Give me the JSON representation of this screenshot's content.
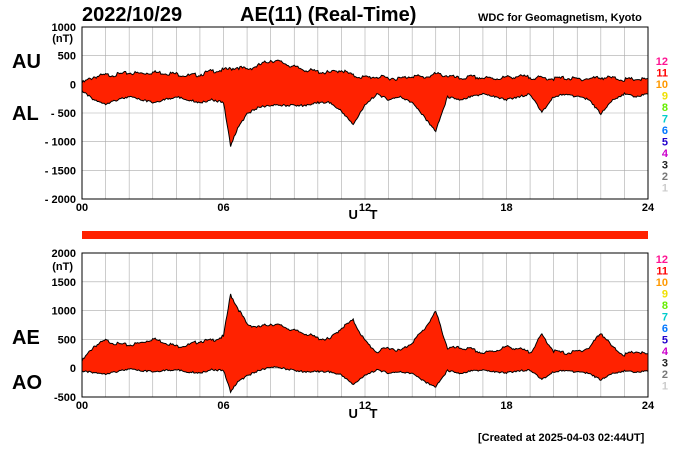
{
  "header": {
    "date": "2022/10/29",
    "title": "AE(11) (Real-Time)",
    "credit": "WDC for Geomagnetism, Kyoto",
    "created": "[Created at 2025-04-03 02:44UT]"
  },
  "station_numbers": [
    "12",
    "11",
    "10",
    "9",
    "8",
    "7",
    "6",
    "5",
    "4",
    "3",
    "2",
    "1"
  ],
  "station_colors": [
    "#ff1493",
    "#ff0000",
    "#ff9900",
    "#f0e000",
    "#66ee00",
    "#00cccc",
    "#0077ff",
    "#2200cc",
    "#cc00cc",
    "#222222",
    "#777777",
    "#cccccc"
  ],
  "colors": {
    "fill": "#ff2200",
    "line": "#000000",
    "grid": "#aaaaaa"
  },
  "chart_data": [
    {
      "type": "area",
      "panel": "top",
      "series": [
        {
          "name": "AU"
        },
        {
          "name": "AL"
        }
      ],
      "side_labels": [
        "AU",
        "AL"
      ],
      "unit": "(nT)",
      "xlabel": "U T",
      "xlim": [
        0,
        24
      ],
      "ylim": [
        -2000,
        1000
      ],
      "xticks": [
        0,
        6,
        12,
        18,
        24
      ],
      "xtick_labels": [
        "00",
        "06",
        "12",
        "18",
        "24"
      ],
      "yticks": [
        1000,
        500,
        0,
        -500,
        -1000,
        -1500,
        -2000
      ],
      "ytick_labels": [
        "1000",
        "500",
        "0",
        "- 500",
        "- 1000",
        "- 1500",
        "- 2000"
      ],
      "grid": true,
      "x": [
        0,
        0.5,
        1,
        1.5,
        2,
        2.5,
        3,
        3.5,
        4,
        4.5,
        5,
        5.5,
        6,
        6.3,
        6.6,
        7,
        7.5,
        8,
        8.5,
        9,
        9.5,
        10,
        10.5,
        11,
        11.5,
        12,
        12.5,
        13,
        13.5,
        14,
        14.5,
        15,
        15.5,
        16,
        16.5,
        17,
        17.5,
        18,
        18.5,
        19,
        19.5,
        20,
        20.5,
        21,
        21.5,
        22,
        22.5,
        23,
        23.5,
        24
      ],
      "AU": [
        20,
        130,
        160,
        170,
        200,
        190,
        210,
        200,
        180,
        150,
        170,
        230,
        250,
        270,
        300,
        260,
        330,
        420,
        380,
        300,
        250,
        220,
        200,
        250,
        150,
        120,
        130,
        110,
        100,
        150,
        120,
        180,
        150,
        100,
        130,
        110,
        100,
        120,
        140,
        120,
        110,
        100,
        110,
        90,
        100,
        120,
        110,
        80,
        90,
        80
      ],
      "AL": [
        -100,
        -250,
        -320,
        -250,
        -200,
        -250,
        -300,
        -250,
        -200,
        -250,
        -300,
        -250,
        -300,
        -1050,
        -750,
        -500,
        -380,
        -350,
        -350,
        -350,
        -350,
        -300,
        -300,
        -450,
        -680,
        -350,
        -150,
        -250,
        -200,
        -300,
        -550,
        -800,
        -200,
        -250,
        -200,
        -150,
        -200,
        -250,
        -200,
        -150,
        -470,
        -200,
        -150,
        -200,
        -250,
        -500,
        -250,
        -150,
        -200,
        -150
      ]
    },
    {
      "type": "area",
      "panel": "bottom",
      "series": [
        {
          "name": "AE"
        },
        {
          "name": "AO"
        }
      ],
      "side_labels": [
        "AE",
        "AO"
      ],
      "unit": "(nT)",
      "xlabel": "U T",
      "xlim": [
        0,
        24
      ],
      "ylim": [
        -500,
        2000
      ],
      "xticks": [
        0,
        6,
        12,
        18,
        24
      ],
      "xtick_labels": [
        "00",
        "06",
        "12",
        "18",
        "24"
      ],
      "yticks": [
        2000,
        1500,
        1000,
        500,
        0,
        -500
      ],
      "ytick_labels": [
        "2000",
        "1500",
        "1000",
        "500",
        "0",
        "-500"
      ],
      "grid": true,
      "x": [
        0,
        0.5,
        1,
        1.5,
        2,
        2.5,
        3,
        3.5,
        4,
        4.5,
        5,
        5.5,
        6,
        6.3,
        6.6,
        7,
        7.5,
        8,
        8.5,
        9,
        9.5,
        10,
        10.5,
        11,
        11.5,
        12,
        12.5,
        13,
        13.5,
        14,
        14.5,
        15,
        15.5,
        16,
        16.5,
        17,
        17.5,
        18,
        18.5,
        19,
        19.5,
        20,
        20.5,
        21,
        21.5,
        22,
        22.5,
        23,
        23.5,
        24
      ],
      "AE": [
        120,
        380,
        480,
        420,
        400,
        440,
        510,
        450,
        380,
        400,
        470,
        480,
        550,
        1280,
        1050,
        760,
        710,
        770,
        730,
        650,
        600,
        520,
        500,
        700,
        830,
        470,
        280,
        360,
        300,
        450,
        670,
        980,
        350,
        350,
        330,
        260,
        300,
        370,
        340,
        270,
        580,
        300,
        260,
        290,
        350,
        620,
        360,
        230,
        290,
        230
      ],
      "AO": [
        -40,
        -60,
        -80,
        -40,
        0,
        -30,
        -45,
        -25,
        -10,
        -50,
        -65,
        -10,
        -25,
        -390,
        -225,
        -120,
        -25,
        35,
        15,
        -25,
        -50,
        -40,
        -50,
        -100,
        -265,
        -115,
        -10,
        -70,
        -50,
        -75,
        -215,
        -310,
        -25,
        -75,
        -35,
        -20,
        -50,
        -65,
        -30,
        -15,
        -180,
        -50,
        -20,
        -55,
        -75,
        -190,
        -70,
        -35,
        -55,
        -35
      ]
    }
  ]
}
